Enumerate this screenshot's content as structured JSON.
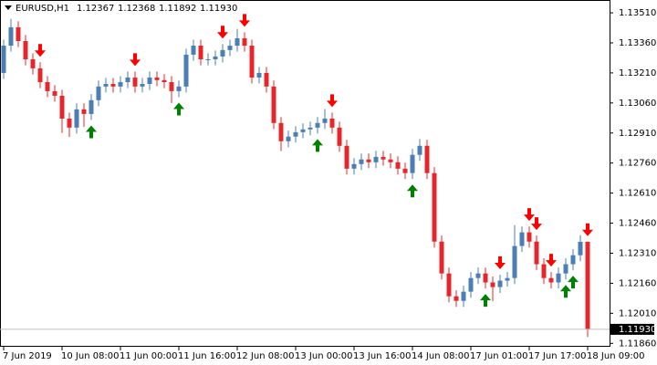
{
  "chart_data": {
    "type": "candlestick",
    "title": "EURUSD,H1",
    "last_close_label": "1.11930",
    "up_color": "#4a7fb5",
    "down_color": "#e8262a",
    "up_arrow_color": "#008000",
    "down_arrow_color": "#ff0000",
    "open": [
      1.1321,
      1.13346,
      1.13438,
      1.13369,
      1.13278,
      1.13233,
      1.13164,
      1.13119,
      1.13096,
      1.12982,
      1.12937,
      1.13028,
      1.13005,
      1.13074,
      1.13142,
      1.13155,
      1.13142,
      1.13164,
      1.13187,
      1.13142,
      1.13155,
      1.13187,
      1.13174,
      1.13164,
      1.13119,
      1.13142,
      1.13301,
      1.13346,
      1.13278,
      1.13278,
      1.13292,
      1.13324,
      1.13346,
      1.13383,
      1.13346,
      1.13187,
      1.1321,
      1.13142,
      1.1296,
      1.12869,
      1.12892,
      1.12914,
      1.12928,
      1.12937,
      1.1296,
      1.12982,
      1.12937,
      1.12846,
      1.12732,
      1.12755,
      1.12778,
      1.12764,
      1.12791,
      1.12778,
      1.12764,
      1.12732,
      1.1271,
      1.12801,
      1.12846,
      1.1271,
      1.12368,
      1.12209,
      1.12095,
      1.12072,
      1.12118,
      1.12186,
      1.12209,
      1.12164,
      1.12141,
      1.12173,
      1.12186,
      1.12346,
      1.12414,
      1.12368,
      1.12255,
      1.12186,
      1.12164,
      1.12209,
      1.12255,
      1.123,
      1.12367
    ],
    "high": [
      1.13376,
      1.1348,
      1.13468,
      1.13399,
      1.13308,
      1.13263,
      1.13194,
      1.13149,
      1.13126,
      1.13012,
      1.13058,
      1.13058,
      1.13104,
      1.13172,
      1.13185,
      1.13185,
      1.13194,
      1.13217,
      1.13217,
      1.13185,
      1.13217,
      1.13217,
      1.13204,
      1.13194,
      1.13172,
      1.13331,
      1.13376,
      1.13376,
      1.13308,
      1.13322,
      1.13354,
      1.13376,
      1.1343,
      1.13413,
      1.13376,
      1.1324,
      1.1324,
      1.13172,
      1.1299,
      1.12922,
      1.12944,
      1.12958,
      1.12967,
      1.1299,
      1.1303,
      1.13012,
      1.12967,
      1.12876,
      1.12785,
      1.12808,
      1.12808,
      1.12821,
      1.12821,
      1.12808,
      1.12794,
      1.12762,
      1.12831,
      1.1288,
      1.12876,
      1.1274,
      1.12398,
      1.12239,
      1.12125,
      1.12148,
      1.12216,
      1.12239,
      1.12239,
      1.12194,
      1.12203,
      1.12216,
      1.1245,
      1.12444,
      1.12444,
      1.12398,
      1.12285,
      1.12216,
      1.12239,
      1.12285,
      1.1233,
      1.124,
      1.12368
    ],
    "low": [
      1.1318,
      1.13316,
      1.13339,
      1.13248,
      1.13203,
      1.13134,
      1.13089,
      1.13066,
      1.1291,
      1.1289,
      1.12907,
      1.1294,
      1.12975,
      1.13044,
      1.13112,
      1.13112,
      1.13112,
      1.13134,
      1.13112,
      1.13112,
      1.13125,
      1.13144,
      1.13134,
      1.1306,
      1.13089,
      1.13112,
      1.13271,
      1.13248,
      1.13248,
      1.13248,
      1.13262,
      1.13294,
      1.13316,
      1.13316,
      1.13157,
      1.13157,
      1.13112,
      1.1293,
      1.1282,
      1.12839,
      1.12862,
      1.12884,
      1.12898,
      1.12907,
      1.1293,
      1.12907,
      1.12816,
      1.12702,
      1.12702,
      1.12725,
      1.12734,
      1.12734,
      1.12748,
      1.12734,
      1.12702,
      1.1268,
      1.1268,
      1.12771,
      1.1268,
      1.12338,
      1.12179,
      1.12065,
      1.12042,
      1.12042,
      1.12088,
      1.12156,
      1.12134,
      1.1207,
      1.12111,
      1.12143,
      1.12156,
      1.12316,
      1.12338,
      1.12225,
      1.12156,
      1.12134,
      1.12134,
      1.12179,
      1.12225,
      1.1227,
      1.11892
    ],
    "close": [
      1.13346,
      1.13438,
      1.13369,
      1.13278,
      1.13233,
      1.13164,
      1.13119,
      1.13096,
      1.12982,
      1.12937,
      1.13028,
      1.13005,
      1.13074,
      1.13142,
      1.13155,
      1.13142,
      1.13164,
      1.13187,
      1.13142,
      1.13155,
      1.13187,
      1.13174,
      1.13164,
      1.13119,
      1.13142,
      1.13301,
      1.13346,
      1.13278,
      1.13278,
      1.13292,
      1.13324,
      1.13346,
      1.13383,
      1.13346,
      1.13187,
      1.1321,
      1.13142,
      1.1296,
      1.12869,
      1.12892,
      1.12914,
      1.12928,
      1.12937,
      1.1296,
      1.12982,
      1.12937,
      1.12846,
      1.12732,
      1.12755,
      1.12778,
      1.12764,
      1.12791,
      1.12778,
      1.12764,
      1.12732,
      1.1271,
      1.12801,
      1.12846,
      1.1271,
      1.12368,
      1.12209,
      1.12095,
      1.12072,
      1.12118,
      1.12186,
      1.12209,
      1.12164,
      1.12141,
      1.12173,
      1.12186,
      1.12346,
      1.12414,
      1.12368,
      1.12255,
      1.12186,
      1.12164,
      1.12209,
      1.12255,
      1.123,
      1.12367,
      1.1193
    ],
    "signals_down": [
      5,
      18,
      30,
      33,
      45,
      68,
      72,
      73,
      75,
      80
    ],
    "signals_up": [
      12,
      24,
      43,
      56,
      66,
      77,
      78
    ],
    "ylim": [
      1.11843,
      1.13574
    ],
    "yticks": [
      {
        "value": 1.1351,
        "label": "1.13510"
      },
      {
        "value": 1.1336,
        "label": "1.13360"
      },
      {
        "value": 1.1321,
        "label": "1.13210"
      },
      {
        "value": 1.1306,
        "label": "1.13060"
      },
      {
        "value": 1.1291,
        "label": "1.12910"
      },
      {
        "value": 1.1276,
        "label": "1.12760"
      },
      {
        "value": 1.1261,
        "label": "1.12610"
      },
      {
        "value": 1.1246,
        "label": "1.12460"
      },
      {
        "value": 1.1231,
        "label": "1.12310"
      },
      {
        "value": 1.1216,
        "label": "1.12160"
      },
      {
        "value": 1.1201,
        "label": "1.12010"
      },
      {
        "value": 1.1186,
        "label": "1.11860"
      }
    ],
    "xticks": [
      {
        "value": 0,
        "label": "7 Jun 2019"
      },
      {
        "value": 8,
        "label": "10 Jun 08:00"
      },
      {
        "value": 16,
        "label": "11 Jun 00:00"
      },
      {
        "value": 24,
        "label": "11 Jun 16:00"
      },
      {
        "value": 32,
        "label": "12 Jun 08:00"
      },
      {
        "value": 40,
        "label": "13 Jun 00:00"
      },
      {
        "value": 48,
        "label": "13 Jun 16:00"
      },
      {
        "value": 56,
        "label": "14 Jun 08:00"
      },
      {
        "value": 64,
        "label": "17 Jun 01:00"
      },
      {
        "value": 72,
        "label": "17 Jun 17:00"
      },
      {
        "value": 80,
        "label": "18 Jun 09:00"
      }
    ]
  }
}
